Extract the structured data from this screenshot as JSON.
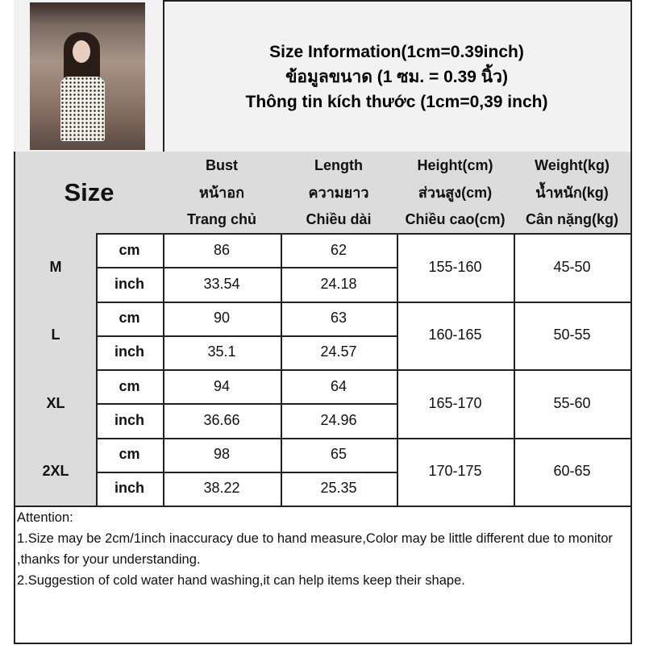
{
  "title": {
    "lines": [
      "Size Information(1cm=0.39inch)",
      "ข้อมูลขนาด (1 ซม. = 0.39 นิ้ว)",
      "Thông tin kích thước (1cm=0,39 inch)"
    ]
  },
  "header": {
    "size_label": "Size",
    "columns": [
      {
        "en": "Bust",
        "th": "หน้าอก",
        "vi": "Trang chủ"
      },
      {
        "en": "Length",
        "th": "ความยาว",
        "vi": "Chiều dài"
      },
      {
        "en": "Height(cm)",
        "th": "ส่วนสูง(cm)",
        "vi": "Chiều cao(cm)"
      },
      {
        "en": "Weight(kg)",
        "th": "น้ำหนัก(kg)",
        "vi": "Cân nặng(kg)"
      }
    ]
  },
  "rows": [
    {
      "size": "M",
      "cm_label": "cm",
      "inch_label": "inch",
      "bust_cm": "86",
      "length_cm": "62",
      "bust_in": "33.54",
      "length_in": "24.18",
      "height": "155-160",
      "weight": "45-50"
    },
    {
      "size": "L",
      "cm_label": "cm",
      "inch_label": "inch",
      "bust_cm": "90",
      "length_cm": "63",
      "bust_in": "35.1",
      "length_in": "24.57",
      "height": "160-165",
      "weight": "50-55"
    },
    {
      "size": "XL",
      "cm_label": "cm",
      "inch_label": "inch",
      "bust_cm": "94",
      "length_cm": "64",
      "bust_in": "36.66",
      "length_in": "24.96",
      "height": "165-170",
      "weight": "55-60"
    },
    {
      "size": "2XL",
      "cm_label": "cm",
      "inch_label": "inch",
      "bust_cm": "98",
      "length_cm": "65",
      "bust_in": "38.22",
      "length_in": "25.35",
      "height": "170-175",
      "weight": "60-65"
    }
  ],
  "attention": {
    "heading": "Attention:",
    "notes": [
      "1.Size may be 2cm/1inch inaccuracy due to hand measure,Color may be little different due to monitor ,thanks for your understanding.",
      "2.Suggestion of cold water hand washing,it can help items keep their shape."
    ]
  }
}
